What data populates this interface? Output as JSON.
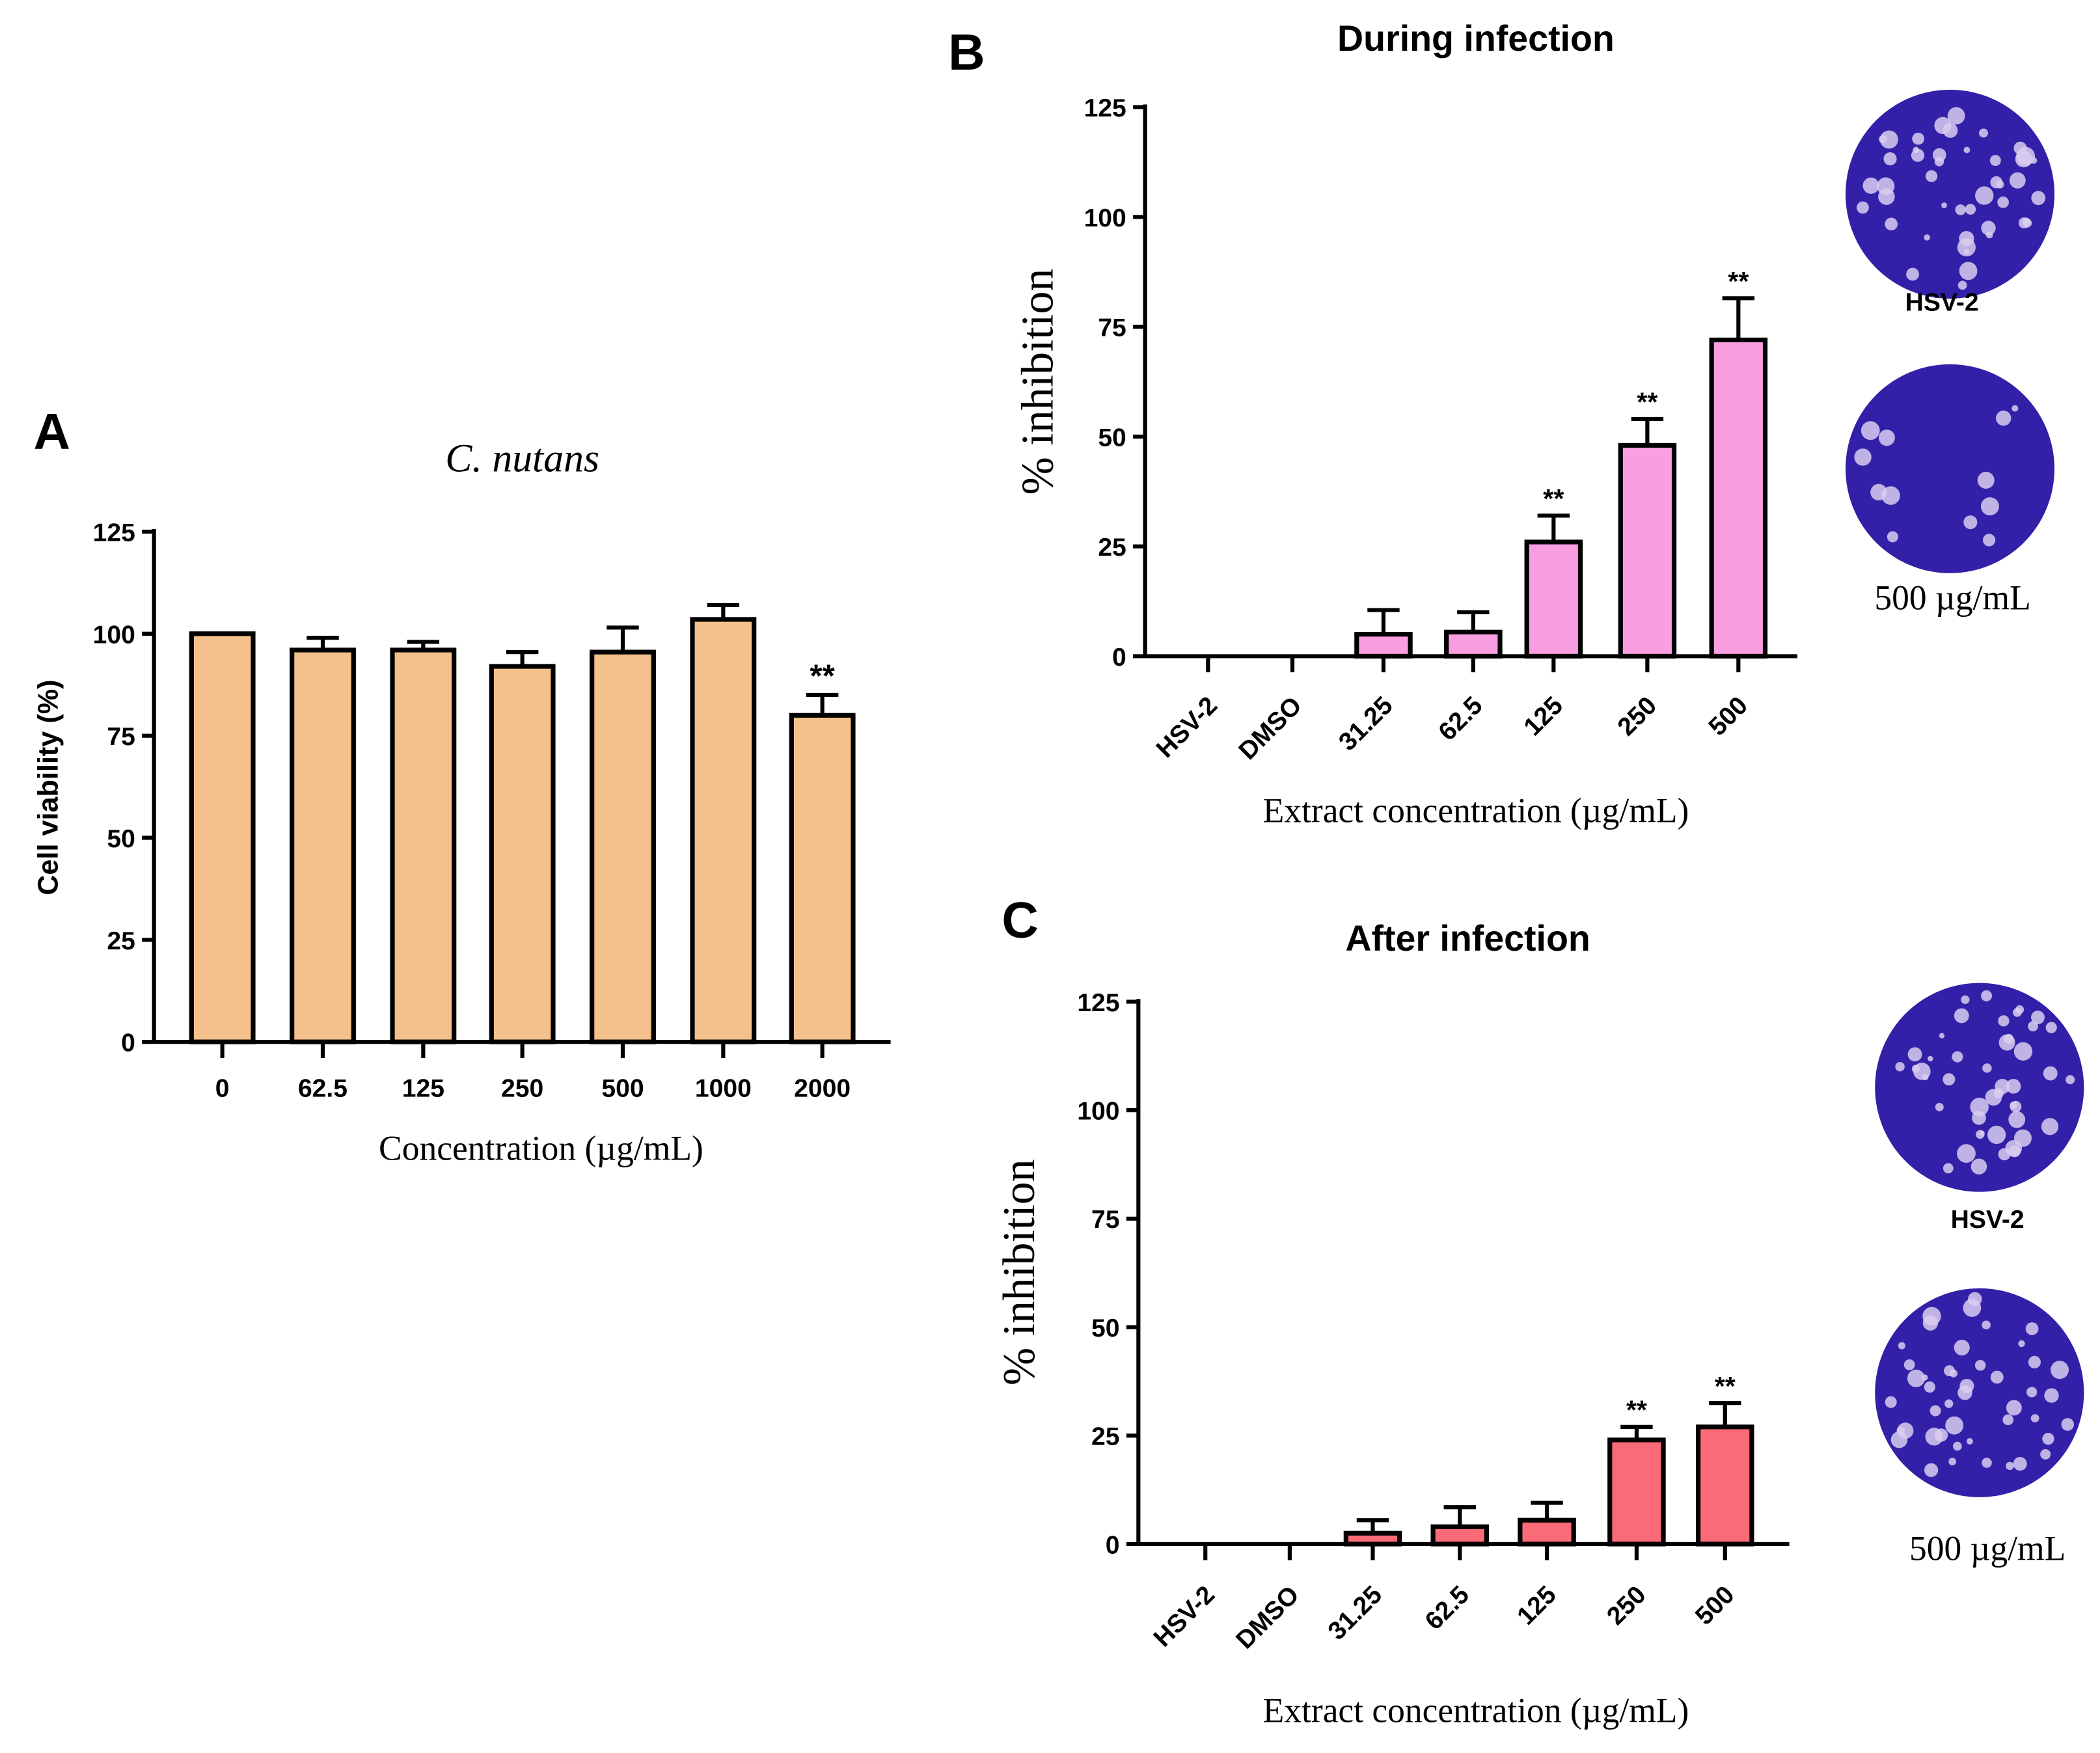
{
  "chart_data": [
    {
      "panel": "A",
      "type": "bar",
      "title": "C. nutans",
      "xlabel": "Concentration (µg/mL)",
      "ylabel": "Cell viability (%)",
      "categories": [
        "0",
        "62.5",
        "125",
        "250",
        "500",
        "1000",
        "2000"
      ],
      "values": [
        100,
        96,
        96,
        92,
        95.5,
        103.5,
        80
      ],
      "errors": [
        0,
        3,
        2,
        3.5,
        6,
        3.5,
        5
      ],
      "significance": [
        "",
        "",
        "",
        "",
        "",
        "",
        "**"
      ],
      "ylim": [
        0,
        125
      ],
      "yticks": [
        "0",
        "25",
        "50",
        "75",
        "100",
        "125"
      ],
      "color": "#f4c08c"
    },
    {
      "panel": "B",
      "type": "bar",
      "title": "During infection",
      "xlabel": "Extract concentration (µg/mL)",
      "ylabel": "% inhibition",
      "categories": [
        "HSV-2",
        "DMSO",
        "31.25",
        "62.5",
        "125",
        "250",
        "500"
      ],
      "values": [
        0,
        0,
        5,
        5.5,
        26,
        48,
        72
      ],
      "errors": [
        0,
        0,
        5.5,
        4.5,
        6,
        6,
        9.5
      ],
      "significance": [
        "",
        "",
        "",
        "",
        "**",
        "**",
        "**"
      ],
      "ylim": [
        0,
        125
      ],
      "yticks": [
        "0",
        "25",
        "50",
        "75",
        "100",
        "125"
      ],
      "color": "#f99ee0",
      "plates": [
        "HSV-2",
        "500 µg/mL"
      ]
    },
    {
      "panel": "C",
      "type": "bar",
      "title": "After infection",
      "xlabel": "Extract concentration (µg/mL)",
      "ylabel": "% inhibition",
      "categories": [
        "HSV-2",
        "DMSO",
        "31.25",
        "62.5",
        "125",
        "250",
        "500"
      ],
      "values": [
        0,
        0,
        2.5,
        4,
        5.5,
        24,
        27
      ],
      "errors": [
        0,
        0,
        3,
        4.5,
        4,
        3,
        5.5
      ],
      "significance": [
        "",
        "",
        "",
        "",
        "",
        "**",
        "**"
      ],
      "ylim": [
        0,
        125
      ],
      "yticks": [
        "0",
        "25",
        "50",
        "75",
        "100",
        "125"
      ],
      "color": "#fb6a78",
      "plates": [
        "HSV-2",
        "500 µg/mL"
      ]
    }
  ]
}
